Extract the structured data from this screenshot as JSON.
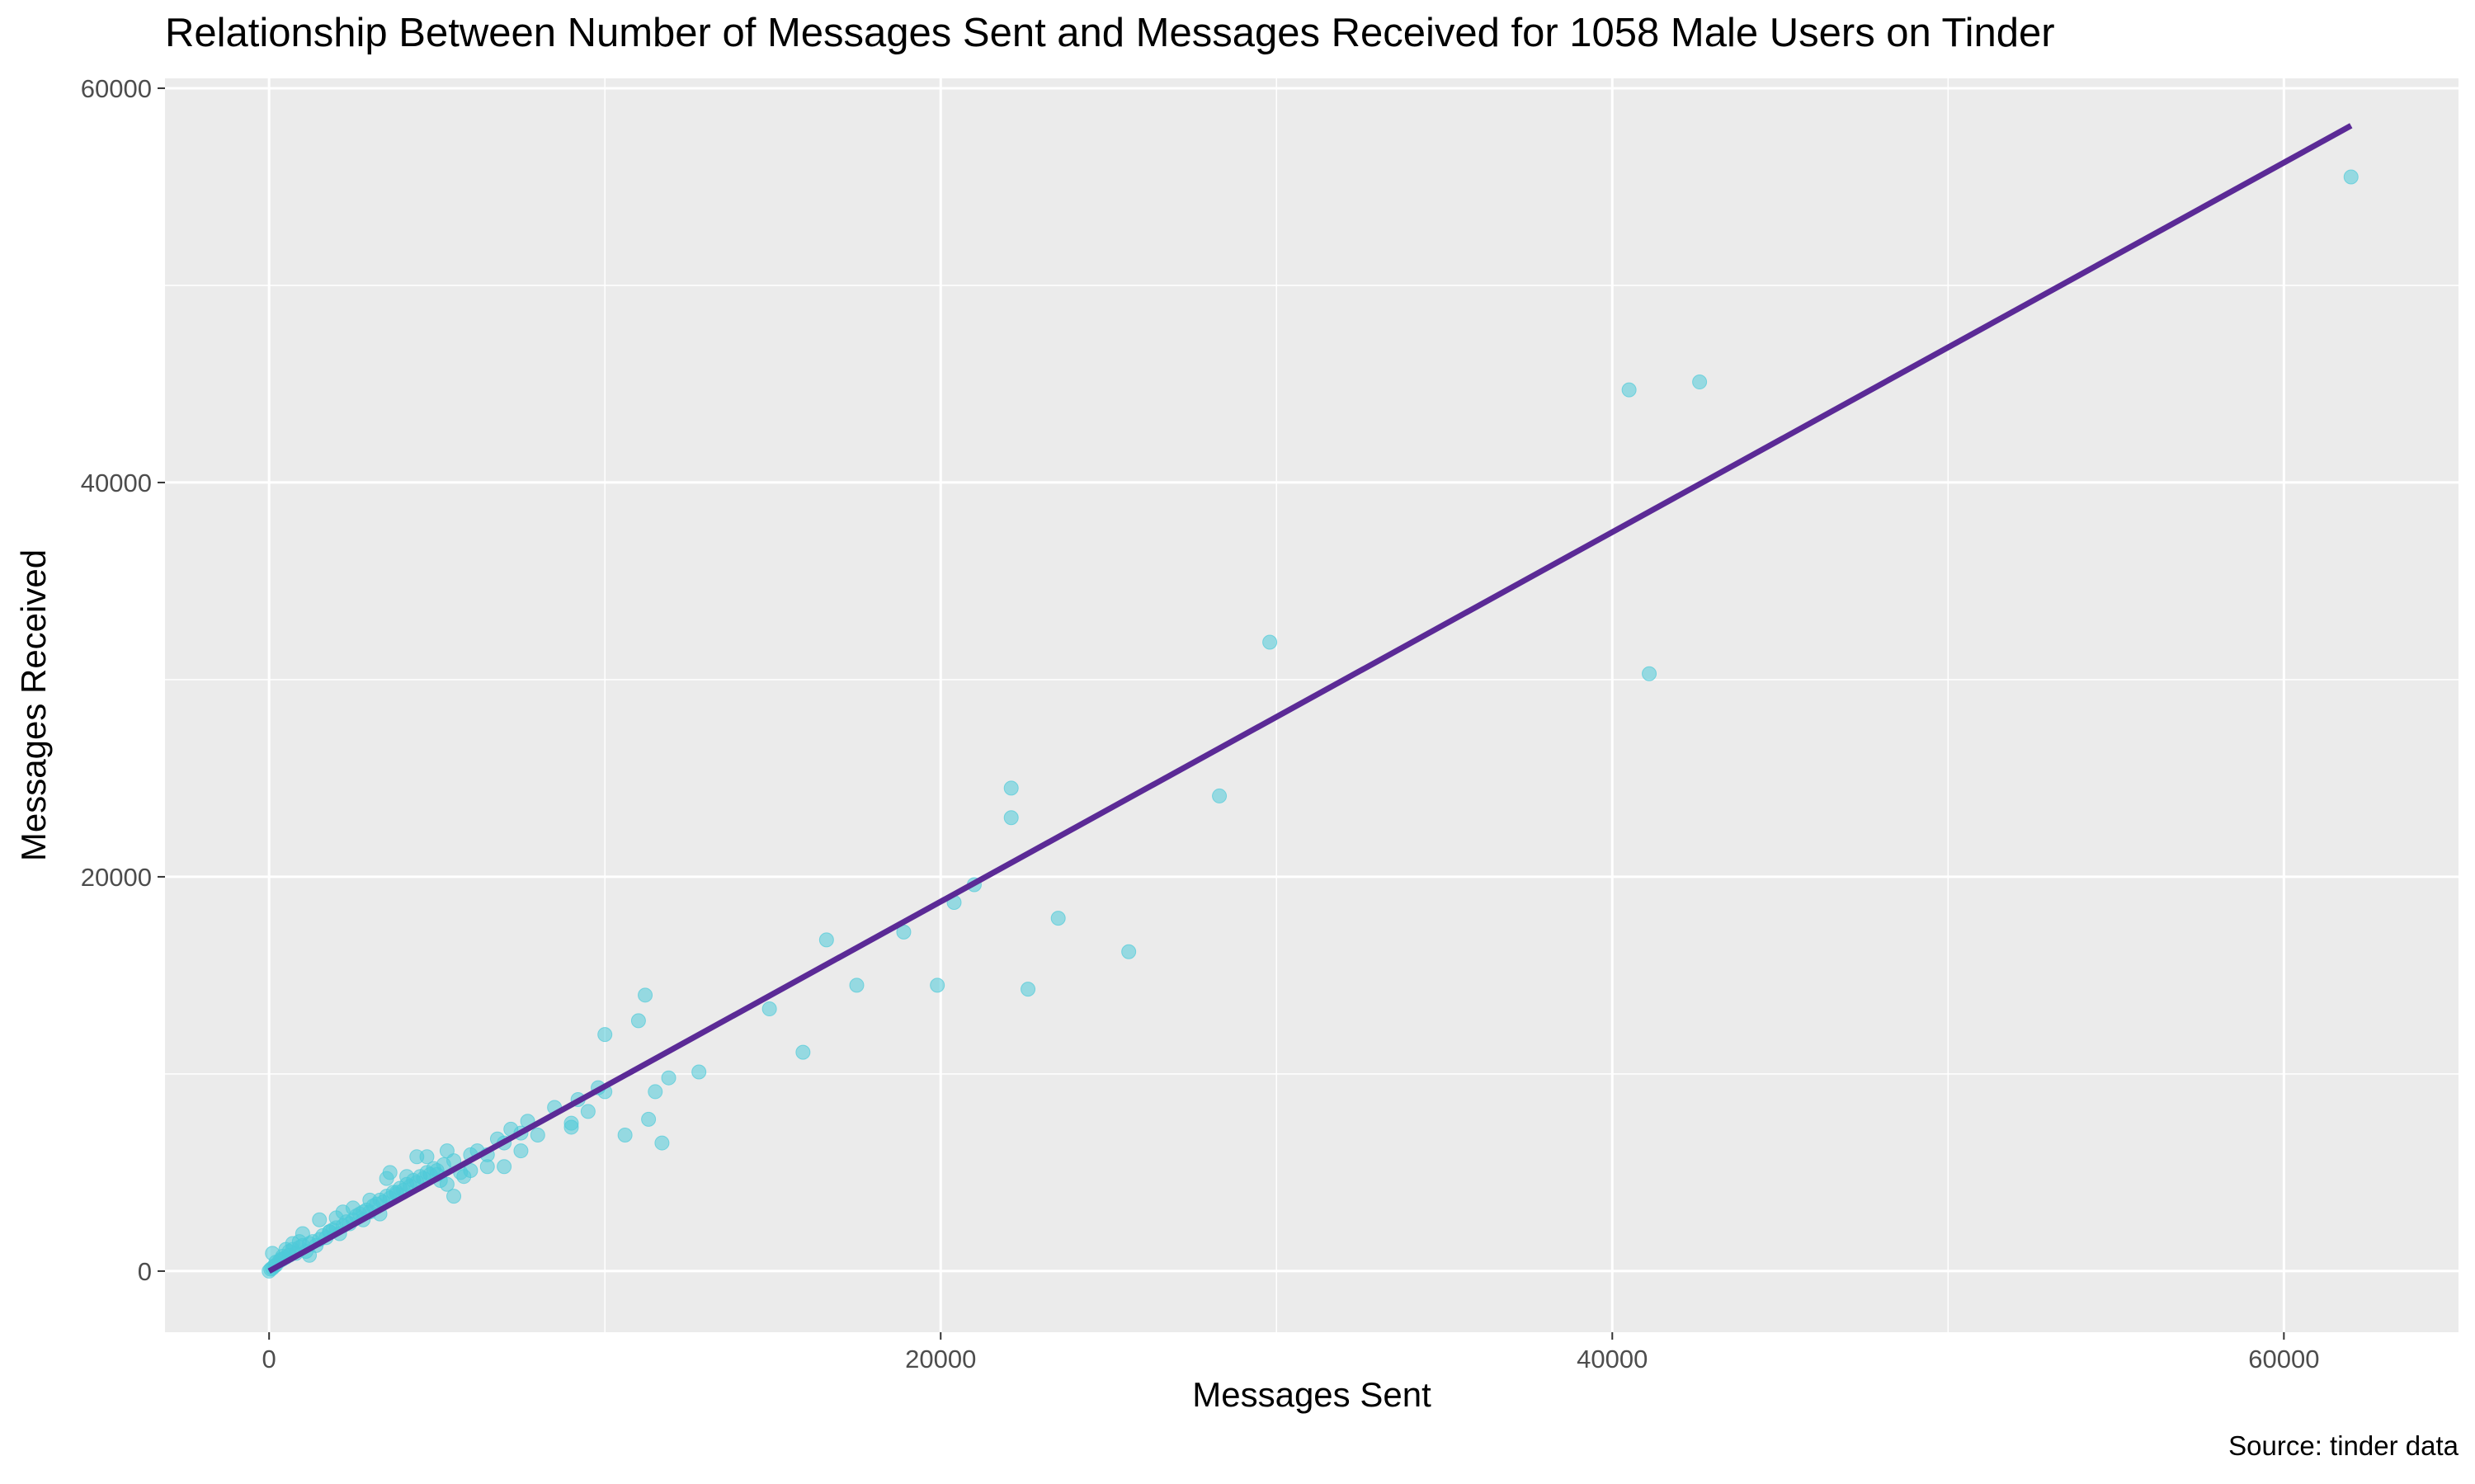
{
  "chart_data": {
    "type": "scatter",
    "title": "Relationship Between Number of Messages Sent and Messages Received for 1058 Male Users on Tinder",
    "xlabel": "Messages Sent",
    "ylabel": "Messages Received",
    "caption": "Source: tinder data",
    "xlim": [
      -3100,
      65200
    ],
    "ylim": [
      -3100,
      60500
    ],
    "xticks": [
      0,
      20000,
      40000,
      60000
    ],
    "yticks": [
      0,
      20000,
      40000,
      60000
    ],
    "xtick_labels": [
      "0",
      "20000",
      "40000",
      "60000"
    ],
    "ytick_labels": [
      "0",
      "20000",
      "40000",
      "60000"
    ],
    "grid": true,
    "legend": "none",
    "colors": {
      "points": "#4ECBD8",
      "line": "#5B2A96",
      "panel": "#EBEBEB",
      "grid": "#FFFFFF"
    },
    "series": [
      {
        "kind": "points",
        "x": [
          0,
          50,
          100,
          200,
          300,
          400,
          500,
          600,
          700,
          800,
          900,
          1000,
          1100,
          1200,
          1300,
          1400,
          1500,
          1600,
          1700,
          1800,
          1900,
          2000,
          2100,
          2200,
          2300,
          2400,
          2500,
          2600,
          2700,
          2800,
          2900,
          3000,
          3100,
          3200,
          3300,
          3400,
          3500,
          3600,
          3700,
          3800,
          3900,
          4000,
          4100,
          4200,
          4300,
          4400,
          4500,
          4600,
          4700,
          4800,
          4900,
          5000,
          5100,
          5200,
          5300,
          5500,
          5700,
          5800,
          6000,
          6200,
          6500,
          6800,
          7000,
          7200,
          7500,
          7700,
          8000,
          8500,
          9000,
          9200,
          9500,
          10000,
          500,
          700,
          900,
          1000,
          1500,
          1800,
          2000,
          2500,
          2800,
          3000,
          3300,
          3500,
          3800,
          4100,
          4400,
          4700,
          5000,
          5300,
          5500,
          6000,
          6500,
          7000,
          7500,
          9000,
          9800,
          1200,
          2200,
          3600,
          200,
          400,
          600,
          150,
          350,
          100,
          10000,
          10600,
          11000,
          11200,
          11300,
          11500,
          11700,
          11900,
          12800,
          14900,
          15900,
          16600,
          17500,
          18900,
          19900,
          20400,
          21000,
          22100,
          22100,
          22600,
          23500,
          25600,
          28300,
          29800,
          40500,
          41100,
          42600,
          62000
        ],
        "y": [
          0,
          100,
          150,
          300,
          500,
          600,
          700,
          800,
          1100,
          900,
          1200,
          1300,
          1000,
          1400,
          1500,
          1300,
          1600,
          1800,
          1700,
          2000,
          2100,
          2200,
          1900,
          2300,
          2500,
          2400,
          2600,
          2800,
          2900,
          3000,
          3100,
          3000,
          3300,
          3400,
          3600,
          3500,
          3800,
          3700,
          4000,
          3900,
          4200,
          4100,
          4400,
          4300,
          4600,
          4500,
          4800,
          4700,
          5000,
          4900,
          5200,
          5100,
          4600,
          5400,
          4400,
          5600,
          5000,
          4800,
          5900,
          6100,
          5300,
          6700,
          6500,
          7200,
          7000,
          7600,
          6900,
          8300,
          7300,
          8700,
          8100,
          9100,
          1100,
          1400,
          1500,
          1900,
          2600,
          2000,
          2700,
          3200,
          2600,
          3600,
          2900,
          4700,
          4000,
          4800,
          5800,
          5800,
          4900,
          6100,
          3800,
          5100,
          5900,
          5300,
          6100,
          7500,
          9300,
          800,
          3000,
          5000,
          450,
          750,
          1000,
          250,
          600,
          900,
          12000,
          6900,
          12700,
          14000,
          7700,
          9100,
          6500,
          9800,
          10100,
          13300,
          11100,
          16800,
          14500,
          17200,
          14500,
          18700,
          19600,
          24500,
          23000,
          14300,
          17900,
          16200,
          24100,
          31900,
          44700,
          30300,
          45100,
          55500
        ]
      },
      {
        "kind": "fit-line",
        "x": [
          0,
          62000
        ],
        "y": [
          0,
          58100
        ]
      }
    ]
  }
}
